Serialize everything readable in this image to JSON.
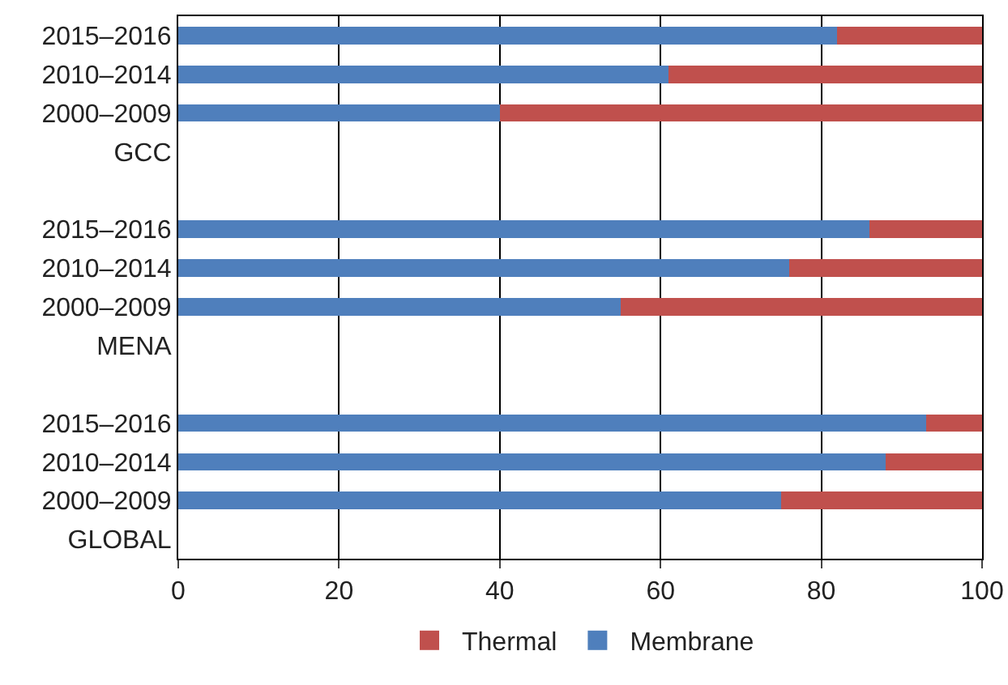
{
  "chart_data": {
    "type": "bar",
    "orientation": "horizontal",
    "stacked": true,
    "categories": [
      "2015–2016",
      "2010–2014",
      "2000–2009",
      "GCC",
      null,
      "2015–2016",
      "2010–2014",
      "2000–2009",
      "MENA",
      null,
      "2015–2016",
      "2010–2014",
      "2000–2009",
      "GLOBAL"
    ],
    "series": [
      {
        "name": "Membrane",
        "color": "#4f7fbc",
        "values": [
          82,
          61,
          40,
          null,
          null,
          86,
          76,
          55,
          null,
          null,
          93,
          88,
          75,
          null
        ]
      },
      {
        "name": "Thermal",
        "color": "#c0504d",
        "values": [
          18,
          39,
          60,
          null,
          null,
          14,
          24,
          45,
          null,
          null,
          7,
          12,
          25,
          null
        ]
      }
    ],
    "xlim": [
      0,
      100
    ],
    "xticks": [
      0,
      20,
      40,
      60,
      80,
      100
    ],
    "grid": "x",
    "legend": "bottom"
  }
}
